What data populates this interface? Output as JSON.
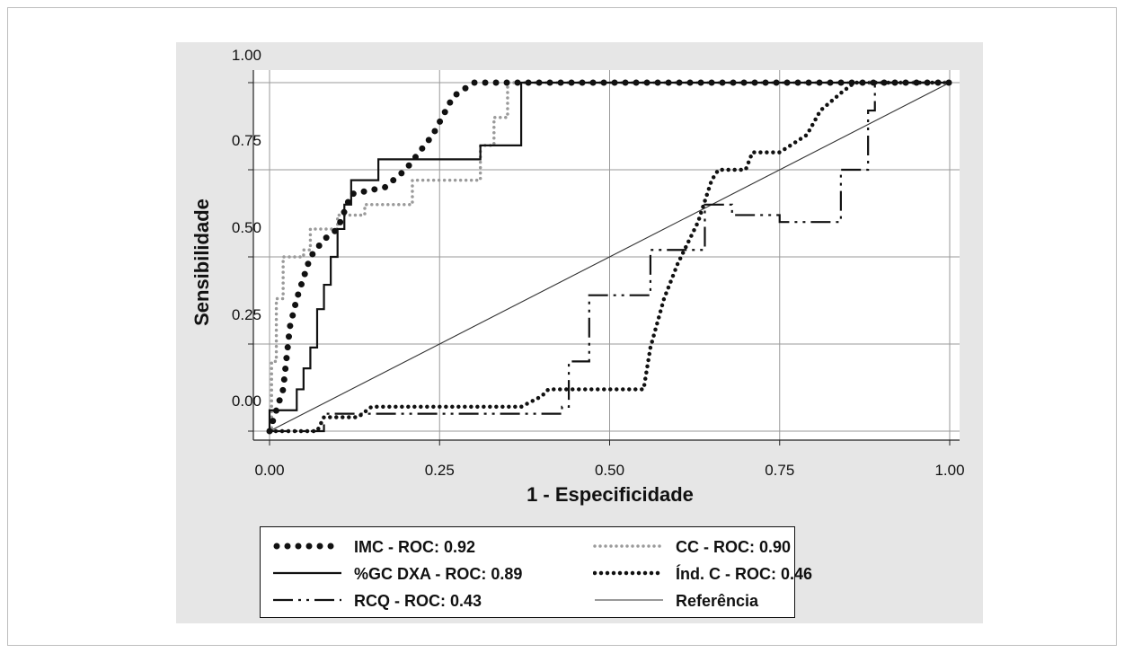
{
  "chart_data": {
    "type": "line",
    "xlabel": "1 - Especificidade",
    "ylabel": "Sensibilidade",
    "xlim": [
      0,
      1
    ],
    "ylim": [
      -0.05,
      1.0
    ],
    "grid": true,
    "x_ticks": [
      "0.00",
      "0.25",
      "0.50",
      "0.75",
      "1.00"
    ],
    "y_ticks": [
      "0.00",
      "0.25",
      "0.50",
      "0.75",
      "1.00"
    ],
    "legend_position": "bottom",
    "series": [
      {
        "name": "IMC - ROC: 0.92",
        "style": "dots",
        "x": [
          0,
          0.01,
          0.02,
          0.03,
          0.04,
          0.05,
          0.06,
          0.08,
          0.1,
          0.12,
          0.17,
          0.2,
          0.24,
          0.27,
          0.3,
          0.4,
          1.0
        ],
        "y": [
          0,
          0.06,
          0.12,
          0.3,
          0.38,
          0.44,
          0.5,
          0.55,
          0.58,
          0.68,
          0.7,
          0.75,
          0.85,
          0.96,
          1.0,
          1.0,
          1.0
        ]
      },
      {
        "name": "%GC DXA - ROC: 0.89",
        "style": "solid",
        "x": [
          0,
          0,
          0.02,
          0.04,
          0.05,
          0.06,
          0.07,
          0.08,
          0.09,
          0.1,
          0.11,
          0.12,
          0.15,
          0.16,
          0.19,
          0.3,
          0.31,
          0.35,
          0.37,
          1.0
        ],
        "y": [
          0,
          0.06,
          0.06,
          0.12,
          0.18,
          0.24,
          0.35,
          0.42,
          0.5,
          0.58,
          0.65,
          0.72,
          0.72,
          0.78,
          0.78,
          0.78,
          0.82,
          0.82,
          1.0,
          1.0
        ],
        "step": true
      },
      {
        "name": "CC - ROC: 0.90",
        "style": "light-dots",
        "x": [
          0,
          0.003,
          0.01,
          0.02,
          0.05,
          0.06,
          0.08,
          0.1,
          0.12,
          0.14,
          0.19,
          0.21,
          0.3,
          0.31,
          0.33,
          0.35,
          0.4,
          1.0
        ],
        "y": [
          0,
          0.2,
          0.38,
          0.5,
          0.52,
          0.58,
          0.58,
          0.62,
          0.62,
          0.65,
          0.65,
          0.72,
          0.72,
          0.82,
          0.9,
          1.0,
          1.0,
          1.0
        ],
        "step": true
      },
      {
        "name": "Índ. C - ROC: 0.46",
        "style": "dense-dots",
        "x": [
          0,
          0.07,
          0.08,
          0.13,
          0.15,
          0.37,
          0.4,
          0.41,
          0.55,
          0.56,
          0.58,
          0.6,
          0.63,
          0.65,
          0.66,
          0.7,
          0.71,
          0.75,
          0.79,
          0.81,
          0.84,
          0.86,
          1.0
        ],
        "y": [
          0,
          0,
          0.04,
          0.04,
          0.07,
          0.07,
          0.1,
          0.12,
          0.12,
          0.24,
          0.38,
          0.48,
          0.6,
          0.72,
          0.75,
          0.75,
          0.8,
          0.8,
          0.85,
          0.92,
          0.97,
          1.0,
          1.0
        ]
      },
      {
        "name": "RCQ - ROC: 0.43",
        "style": "dash-dot",
        "x": [
          0,
          0.07,
          0.08,
          0.42,
          0.43,
          0.44,
          0.47,
          0.56,
          0.64,
          0.68,
          0.75,
          0.79,
          0.84,
          0.88,
          0.89,
          1.0
        ],
        "y": [
          0,
          0,
          0.05,
          0.05,
          0.07,
          0.2,
          0.39,
          0.52,
          0.65,
          0.62,
          0.6,
          0.6,
          0.75,
          0.92,
          1.0,
          1.0
        ],
        "step": true
      },
      {
        "name": "Referência",
        "style": "thin",
        "x": [
          0,
          1
        ],
        "y": [
          0,
          1
        ]
      }
    ]
  }
}
